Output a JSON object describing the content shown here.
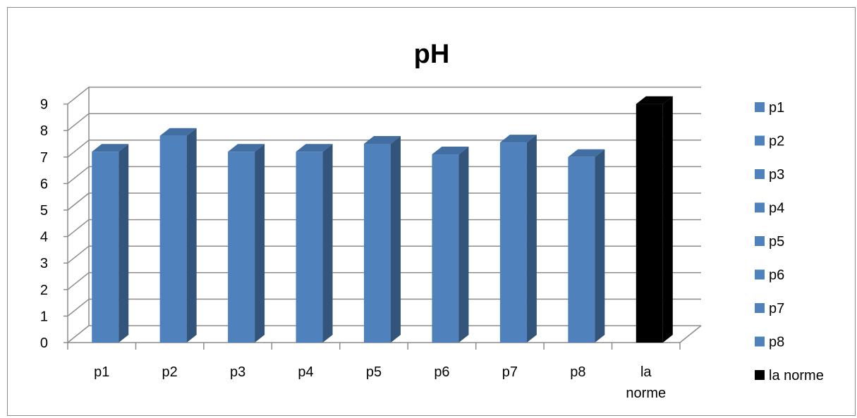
{
  "chart_data": {
    "type": "bar",
    "title": "pH",
    "categories": [
      "p1",
      "p2",
      "p3",
      "p4",
      "p5",
      "p6",
      "p7",
      "p8",
      "la norme"
    ],
    "category_lines": [
      [
        "p1"
      ],
      [
        "p2"
      ],
      [
        "p3"
      ],
      [
        "p4"
      ],
      [
        "p5"
      ],
      [
        "p6"
      ],
      [
        "p7"
      ],
      [
        "p8"
      ],
      [
        "la",
        "norme"
      ]
    ],
    "values": [
      7.2,
      7.8,
      7.2,
      7.2,
      7.5,
      7.1,
      7.55,
      7.0,
      9.0
    ],
    "colors": [
      "#4f81bd",
      "#4f81bd",
      "#4f81bd",
      "#4f81bd",
      "#4f81bd",
      "#4f81bd",
      "#4f81bd",
      "#4f81bd",
      "#000000"
    ],
    "ylim": [
      0,
      9
    ],
    "yticks": [
      "0",
      "1",
      "2",
      "3",
      "4",
      "5",
      "6",
      "7",
      "8",
      "9"
    ],
    "grid": true,
    "three_d": true,
    "legend_position": "right",
    "legend": [
      {
        "label": "p1",
        "color": "#4f81bd"
      },
      {
        "label": "p2",
        "color": "#4f81bd"
      },
      {
        "label": "p3",
        "color": "#4f81bd"
      },
      {
        "label": "p4",
        "color": "#4f81bd"
      },
      {
        "label": "p5",
        "color": "#4f81bd"
      },
      {
        "label": "p6",
        "color": "#4f81bd"
      },
      {
        "label": "p7",
        "color": "#4f81bd"
      },
      {
        "label": "p8",
        "color": "#4f81bd"
      },
      {
        "label": "la norme",
        "color": "#000000"
      }
    ]
  }
}
